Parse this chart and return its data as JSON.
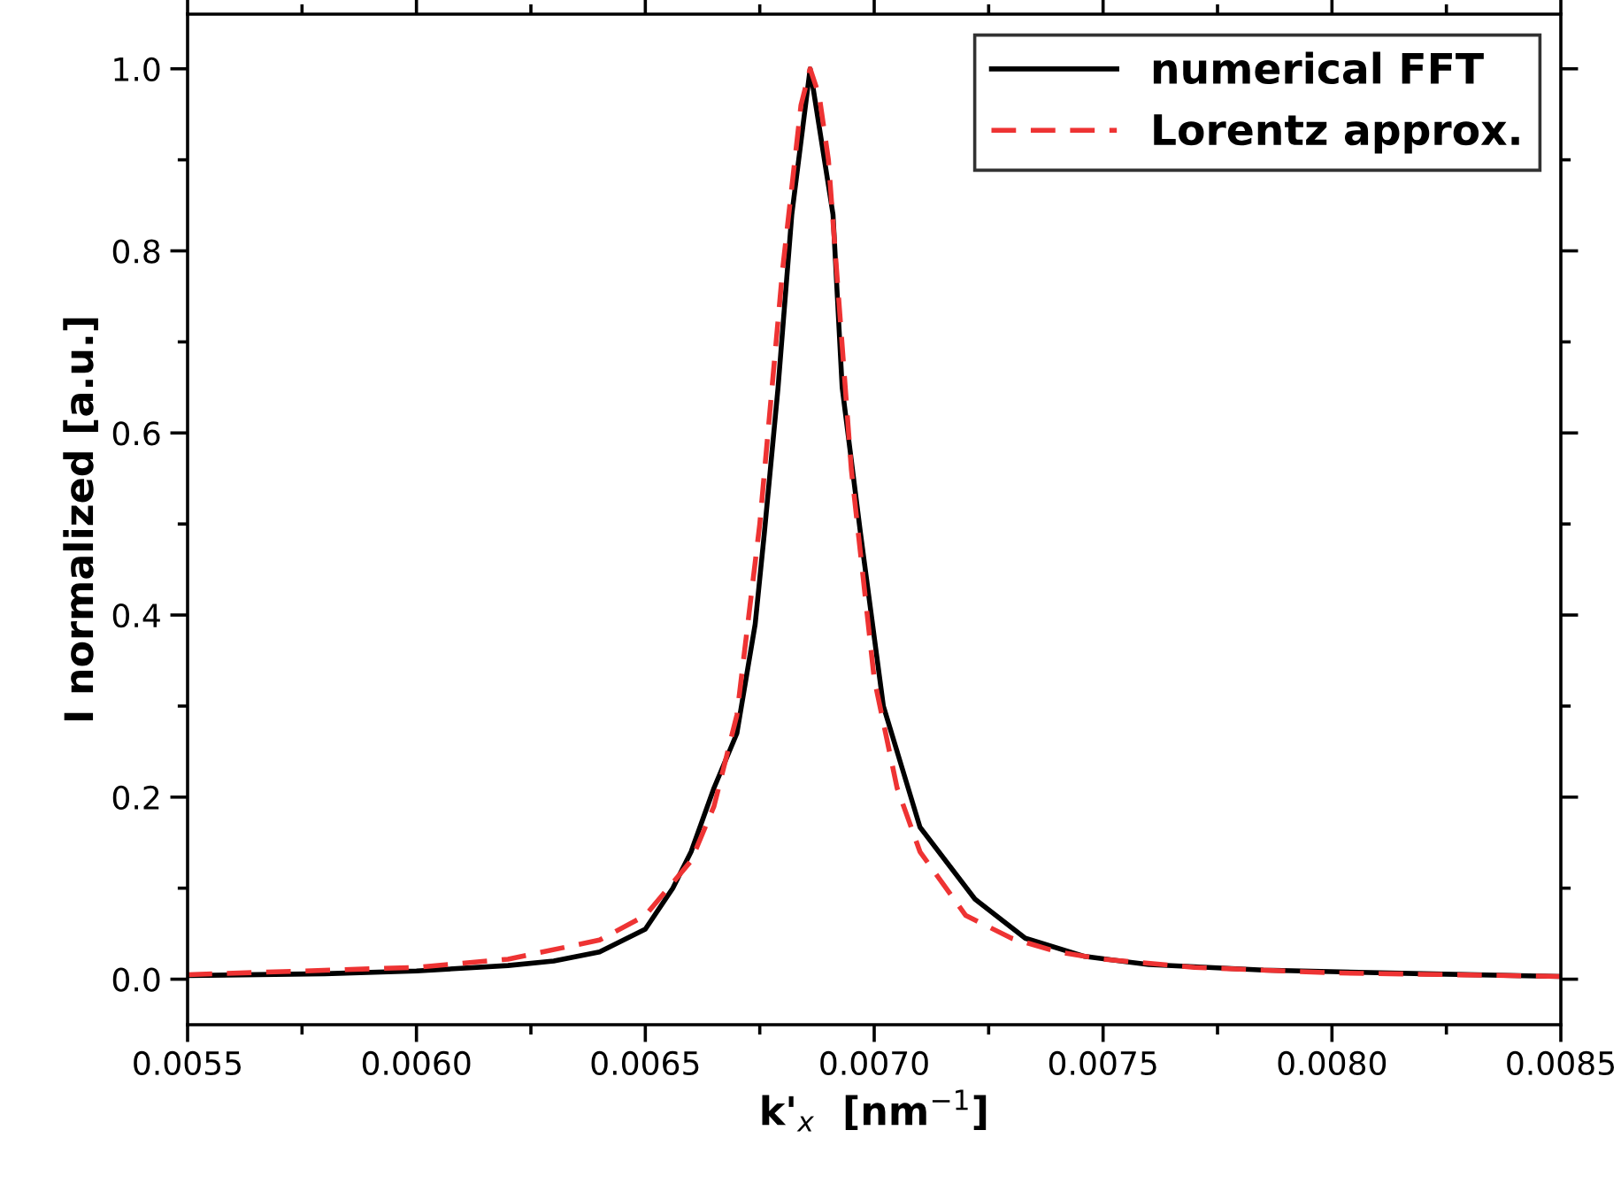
{
  "chart_data": {
    "type": "line",
    "xlabel": "k'$_{x}$  [nm$^{−1}$]",
    "ylabel": "I normalized [a.u.]",
    "xlim": [
      0.0055,
      0.0085
    ],
    "xticks": [
      {
        "value": 0.0055,
        "label": "0.0055"
      },
      {
        "value": 0.006,
        "label": "0.0060"
      },
      {
        "value": 0.0065,
        "label": "0.0065"
      },
      {
        "value": 0.007,
        "label": "0.0070"
      },
      {
        "value": 0.0075,
        "label": "0.0075"
      },
      {
        "value": 0.008,
        "label": "0.0080"
      },
      {
        "value": 0.0085,
        "label": "0.0085"
      }
    ],
    "ylim": [
      -0.05,
      1.06
    ],
    "yticks": [
      {
        "value": 0,
        "label": "0.0"
      },
      {
        "value": 0.2,
        "label": "0.2"
      },
      {
        "value": 0.4,
        "label": "0.4"
      },
      {
        "value": 0.6,
        "label": "0.6"
      },
      {
        "value": 0.8,
        "label": "0.8"
      },
      {
        "value": 1.0,
        "label": "1.0"
      }
    ],
    "grid": false,
    "legend": "top right",
    "marker": "none",
    "series": [
      {
        "name": "numerical FFT",
        "color": "#000000",
        "line_style": "solid",
        "x": [
          0.0055,
          0.0058,
          0.006,
          0.0062,
          0.0063,
          0.0064,
          0.0065,
          0.00656,
          0.0066,
          0.00665,
          0.0067,
          0.00674,
          0.00676,
          0.00679,
          0.00682,
          0.00686,
          0.00691,
          0.00693,
          0.00697,
          0.00702,
          0.0071,
          0.00722,
          0.00733,
          0.00746,
          0.0076,
          0.00785,
          0.0082,
          0.0085
        ],
        "values": [
          0.004,
          0.006,
          0.009,
          0.015,
          0.02,
          0.03,
          0.055,
          0.1,
          0.14,
          0.21,
          0.27,
          0.39,
          0.49,
          0.65,
          0.84,
          1.0,
          0.84,
          0.65,
          0.49,
          0.3,
          0.167,
          0.088,
          0.045,
          0.025,
          0.016,
          0.01,
          0.006,
          0.003
        ]
      },
      {
        "name": "Lorentz approx.",
        "color": "#ee3333",
        "line_style": "dashed",
        "x": [
          0.0055,
          0.006,
          0.0062,
          0.0064,
          0.0065,
          0.0066,
          0.00665,
          0.0067,
          0.00675,
          0.0068,
          0.00684,
          0.00686,
          0.00688,
          0.0069,
          0.00695,
          0.007,
          0.00705,
          0.0071,
          0.0072,
          0.0073,
          0.0074,
          0.0075,
          0.0077,
          0.008,
          0.0085
        ],
        "values": [
          0.005,
          0.013,
          0.022,
          0.043,
          0.07,
          0.13,
          0.19,
          0.29,
          0.5,
          0.78,
          0.96,
          1.0,
          0.97,
          0.9,
          0.56,
          0.33,
          0.21,
          0.14,
          0.07,
          0.045,
          0.03,
          0.022,
          0.013,
          0.007,
          0.003
        ]
      }
    ]
  }
}
